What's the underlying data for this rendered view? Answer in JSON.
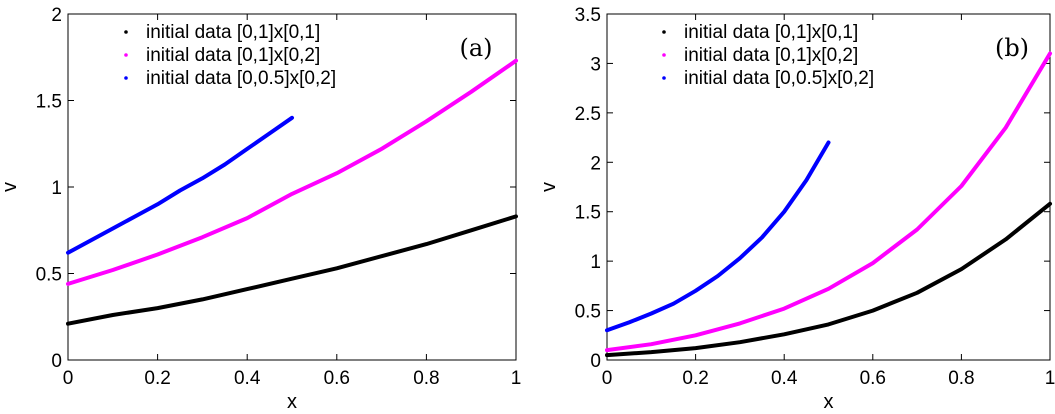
{
  "chart_data": [
    {
      "type": "scatter",
      "panel_label": "(a)",
      "xlabel": "x",
      "ylabel": "v",
      "xlim": [
        0,
        1
      ],
      "ylim": [
        0,
        2
      ],
      "xticks": [
        "0",
        "0.2",
        "0.4",
        "0.6",
        "0.8",
        "1"
      ],
      "yticks": [
        "0",
        "0.5",
        "1",
        "1.5",
        "2"
      ],
      "legend_position": "top-left",
      "grid": false,
      "series": [
        {
          "name": "initial data [0,1]x[0,1]",
          "color": "#000000",
          "x": [
            0,
            0.1,
            0.2,
            0.3,
            0.4,
            0.5,
            0.6,
            0.7,
            0.8,
            0.9,
            1.0
          ],
          "y": [
            0.21,
            0.26,
            0.3,
            0.35,
            0.41,
            0.47,
            0.53,
            0.6,
            0.67,
            0.75,
            0.83
          ]
        },
        {
          "name": "initial data [0,1]x[0,2]",
          "color": "#ff00ff",
          "x": [
            0,
            0.1,
            0.2,
            0.3,
            0.4,
            0.5,
            0.6,
            0.7,
            0.8,
            0.9,
            1.0
          ],
          "y": [
            0.44,
            0.52,
            0.61,
            0.71,
            0.82,
            0.96,
            1.08,
            1.22,
            1.38,
            1.55,
            1.73
          ]
        },
        {
          "name": "initial data [0,0.5]x[0,2]",
          "color": "#0000ff",
          "x": [
            0,
            0.05,
            0.1,
            0.15,
            0.2,
            0.25,
            0.3,
            0.35,
            0.4,
            0.45,
            0.5
          ],
          "y": [
            0.62,
            0.69,
            0.76,
            0.83,
            0.9,
            0.98,
            1.05,
            1.13,
            1.22,
            1.31,
            1.4
          ]
        }
      ]
    },
    {
      "type": "scatter",
      "panel_label": "(b)",
      "xlabel": "x",
      "ylabel": "v",
      "xlim": [
        0,
        1
      ],
      "ylim": [
        0,
        3.5
      ],
      "xticks": [
        "0",
        "0.2",
        "0.4",
        "0.6",
        "0.8",
        "1"
      ],
      "yticks": [
        "0",
        "0.5",
        "1",
        "1.5",
        "2",
        "2.5",
        "3",
        "3.5"
      ],
      "legend_position": "top-left",
      "grid": false,
      "series": [
        {
          "name": "initial data [0,1]x[0,1]",
          "color": "#000000",
          "x": [
            0,
            0.1,
            0.2,
            0.3,
            0.4,
            0.5,
            0.6,
            0.7,
            0.8,
            0.9,
            1.0
          ],
          "y": [
            0.05,
            0.08,
            0.12,
            0.18,
            0.26,
            0.36,
            0.5,
            0.68,
            0.92,
            1.22,
            1.58
          ]
        },
        {
          "name": "initial data [0,1]x[0,2]",
          "color": "#ff00ff",
          "x": [
            0,
            0.1,
            0.2,
            0.3,
            0.4,
            0.5,
            0.6,
            0.7,
            0.8,
            0.9,
            1.0
          ],
          "y": [
            0.1,
            0.16,
            0.25,
            0.37,
            0.52,
            0.72,
            0.98,
            1.32,
            1.76,
            2.35,
            3.1
          ]
        },
        {
          "name": "initial data [0,0.5]x[0,2]",
          "color": "#0000ff",
          "x": [
            0,
            0.05,
            0.1,
            0.15,
            0.2,
            0.25,
            0.3,
            0.35,
            0.4,
            0.45,
            0.5
          ],
          "y": [
            0.3,
            0.38,
            0.47,
            0.57,
            0.7,
            0.85,
            1.03,
            1.24,
            1.5,
            1.82,
            2.2
          ]
        }
      ]
    }
  ]
}
